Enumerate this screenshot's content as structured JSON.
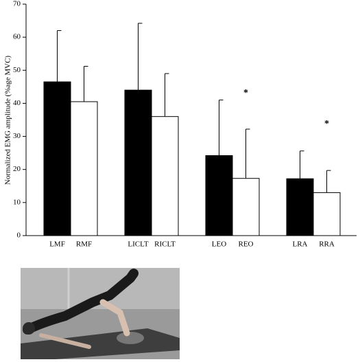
{
  "chart_data": {
    "type": "bar",
    "y_label": "Normalized EMG amplitude (%age MVC)",
    "categories": [
      "LMF",
      "RMF",
      "LICLT",
      "RICLT",
      "LEO",
      "REO",
      "LRA",
      "RRA"
    ],
    "values": [
      46.5,
      40.5,
      44,
      36,
      24.2,
      17.3,
      17.2,
      13
    ],
    "errors": [
      15.5,
      10.7,
      20.2,
      13,
      16.8,
      14.9,
      8.4,
      6.7
    ],
    "colors": [
      "#000000",
      "#ffffff",
      "#000000",
      "#ffffff",
      "#000000",
      "#ffffff",
      "#000000",
      "#ffffff"
    ],
    "ylim": [
      0,
      70
    ],
    "yticks": [
      0,
      10,
      20,
      30,
      40,
      50,
      60,
      70
    ],
    "annotations": [
      {
        "text": "*",
        "x": "REO",
        "y": 43
      },
      {
        "text": "*",
        "x": "RRA",
        "y": 33.7
      }
    ]
  }
}
